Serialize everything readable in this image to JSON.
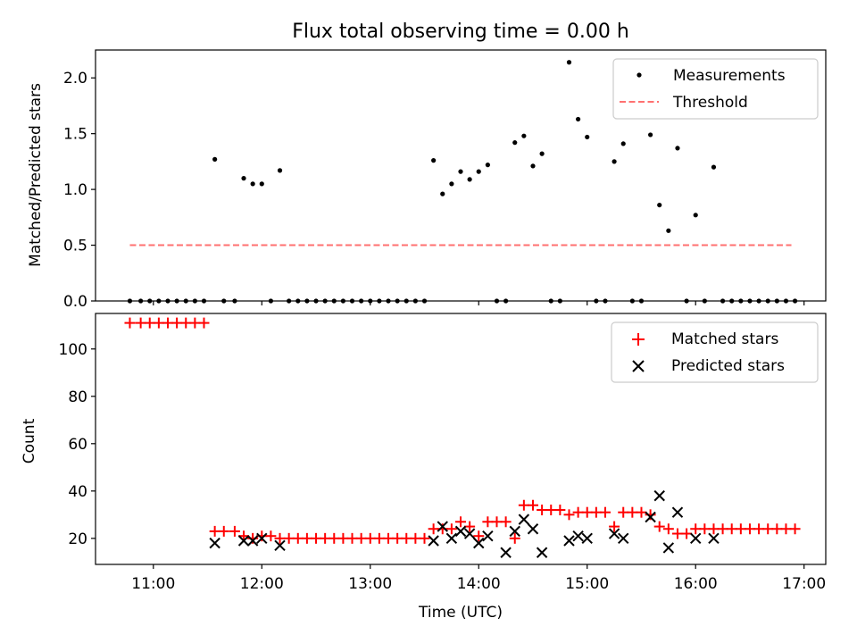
{
  "title": "Flux total observing time = 0.00 h",
  "colors": {
    "measurements": "#000000",
    "threshold": "#ff7070",
    "matched": "#ff0000",
    "predicted": "#000000",
    "axes": "#000000",
    "legend_border": "#cccccc"
  },
  "top_legend": [
    "Measurements",
    "Threshold"
  ],
  "bottom_legend": [
    "Matched stars",
    "Predicted stars"
  ],
  "chart_data": [
    {
      "type": "scatter",
      "ylabel": "Matched/Predicted stars",
      "xlabel": "",
      "xlim": [
        "10:28",
        "17:12"
      ],
      "ylim": [
        0,
        2.25
      ],
      "yticks": [
        0.0,
        0.5,
        1.0,
        1.5,
        2.0
      ],
      "ytick_labels": [
        "0.0",
        "0.5",
        "1.0",
        "1.5",
        "2.0"
      ],
      "xticks": [
        "11:00",
        "12:00",
        "13:00",
        "14:00",
        "15:00",
        "16:00",
        "17:00"
      ],
      "legend_position": "top-right",
      "series": [
        {
          "name": "Measurements",
          "marker": "dot",
          "x": [
            "10:47",
            "10:53",
            "10:58",
            "11:03",
            "11:08",
            "11:13",
            "11:18",
            "11:23",
            "11:28",
            "11:34",
            "11:39",
            "11:45",
            "11:50",
            "11:55",
            "12:00",
            "12:05",
            "12:10",
            "12:15",
            "12:20",
            "12:25",
            "12:30",
            "12:35",
            "12:40",
            "12:45",
            "12:50",
            "12:55",
            "13:00",
            "13:05",
            "13:10",
            "13:15",
            "13:20",
            "13:25",
            "13:30",
            "13:35",
            "13:40",
            "13:45",
            "13:50",
            "13:55",
            "14:00",
            "14:05",
            "14:10",
            "14:15",
            "14:20",
            "14:25",
            "14:30",
            "14:35",
            "14:40",
            "14:45",
            "14:50",
            "14:55",
            "15:00",
            "15:05",
            "15:10",
            "15:15",
            "15:20",
            "15:25",
            "15:30",
            "15:35",
            "15:40",
            "15:45",
            "15:50",
            "15:55",
            "16:00",
            "16:05",
            "16:10",
            "16:15",
            "16:20",
            "16:25",
            "16:30",
            "16:35",
            "16:40",
            "16:45",
            "16:50",
            "16:55"
          ],
          "y": [
            0,
            0,
            0,
            0,
            0,
            0,
            0,
            0,
            0,
            1.27,
            0,
            0,
            1.1,
            1.05,
            1.05,
            0,
            1.17,
            0,
            0,
            0,
            0,
            0,
            0,
            0,
            0,
            0,
            0,
            0,
            0,
            0,
            0,
            0,
            0,
            1.26,
            0.96,
            1.05,
            1.16,
            1.09,
            1.16,
            1.22,
            0,
            0,
            1.42,
            1.48,
            1.21,
            1.32,
            0,
            0,
            2.14,
            1.63,
            1.47,
            0,
            0,
            1.25,
            1.41,
            0,
            0,
            1.49,
            0.86,
            0.63,
            1.37,
            0,
            0.77,
            0,
            1.2,
            0,
            0,
            0,
            0,
            0,
            0,
            0,
            0,
            0
          ]
        },
        {
          "name": "Threshold",
          "style": "dashed",
          "x": [
            "10:47",
            "16:53"
          ],
          "y": [
            0.5,
            0.5
          ]
        }
      ]
    },
    {
      "type": "scatter",
      "ylabel": "Count",
      "xlabel": "Time (UTC)",
      "xlim": [
        "10:28",
        "17:12"
      ],
      "ylim": [
        9,
        115
      ],
      "yticks": [
        20,
        40,
        60,
        80,
        100
      ],
      "ytick_labels": [
        "20",
        "40",
        "60",
        "80",
        "100"
      ],
      "xticks": [
        "11:00",
        "12:00",
        "13:00",
        "14:00",
        "15:00",
        "16:00",
        "17:00"
      ],
      "xtick_labels": [
        "11:00",
        "12:00",
        "13:00",
        "14:00",
        "15:00",
        "16:00",
        "17:00"
      ],
      "legend_position": "top-right",
      "series": [
        {
          "name": "Matched stars",
          "marker": "plus",
          "x": [
            "10:47",
            "10:53",
            "10:58",
            "11:03",
            "11:08",
            "11:13",
            "11:18",
            "11:23",
            "11:28",
            "11:34",
            "11:39",
            "11:45",
            "11:50",
            "11:55",
            "12:00",
            "12:05",
            "12:10",
            "12:15",
            "12:20",
            "12:25",
            "12:30",
            "12:35",
            "12:40",
            "12:45",
            "12:50",
            "12:55",
            "13:00",
            "13:05",
            "13:10",
            "13:15",
            "13:20",
            "13:25",
            "13:30",
            "13:35",
            "13:40",
            "13:45",
            "13:50",
            "13:55",
            "14:00",
            "14:05",
            "14:10",
            "14:15",
            "14:20",
            "14:25",
            "14:30",
            "14:35",
            "14:40",
            "14:45",
            "14:50",
            "14:55",
            "15:00",
            "15:05",
            "15:10",
            "15:15",
            "15:20",
            "15:25",
            "15:30",
            "15:35",
            "15:40",
            "15:45",
            "15:50",
            "15:55",
            "16:00",
            "16:05",
            "16:10",
            "16:15",
            "16:20",
            "16:25",
            "16:30",
            "16:35",
            "16:40",
            "16:45",
            "16:50",
            "16:55"
          ],
          "y": [
            111,
            111,
            111,
            111,
            111,
            111,
            111,
            111,
            111,
            23,
            23,
            23,
            21,
            20,
            21,
            21,
            20,
            20,
            20,
            20,
            20,
            20,
            20,
            20,
            20,
            20,
            20,
            20,
            20,
            20,
            20,
            20,
            20,
            24,
            24,
            24,
            27,
            25,
            21,
            27,
            27,
            27,
            20,
            34,
            34,
            32,
            32,
            32,
            30,
            31,
            31,
            31,
            31,
            25,
            31,
            31,
            31,
            30,
            25,
            24,
            22,
            22,
            24,
            24,
            24,
            24,
            24,
            24,
            24,
            24,
            24,
            24,
            24,
            24
          ]
        },
        {
          "name": "Predicted stars",
          "marker": "x",
          "x": [
            "11:34",
            "11:50",
            "11:55",
            "12:00",
            "12:10",
            "13:35",
            "13:40",
            "13:45",
            "13:50",
            "13:55",
            "14:00",
            "14:05",
            "14:15",
            "14:20",
            "14:25",
            "14:30",
            "14:35",
            "14:50",
            "14:55",
            "15:00",
            "15:15",
            "15:20",
            "15:35",
            "15:40",
            "15:45",
            "15:50",
            "16:00",
            "16:10"
          ],
          "y": [
            18,
            19,
            19,
            20,
            17,
            19,
            25,
            20,
            23,
            22,
            18,
            21,
            14,
            23,
            28,
            24,
            14,
            19,
            21,
            20,
            22,
            20,
            29,
            38,
            16,
            31,
            20,
            20
          ]
        }
      ]
    }
  ]
}
